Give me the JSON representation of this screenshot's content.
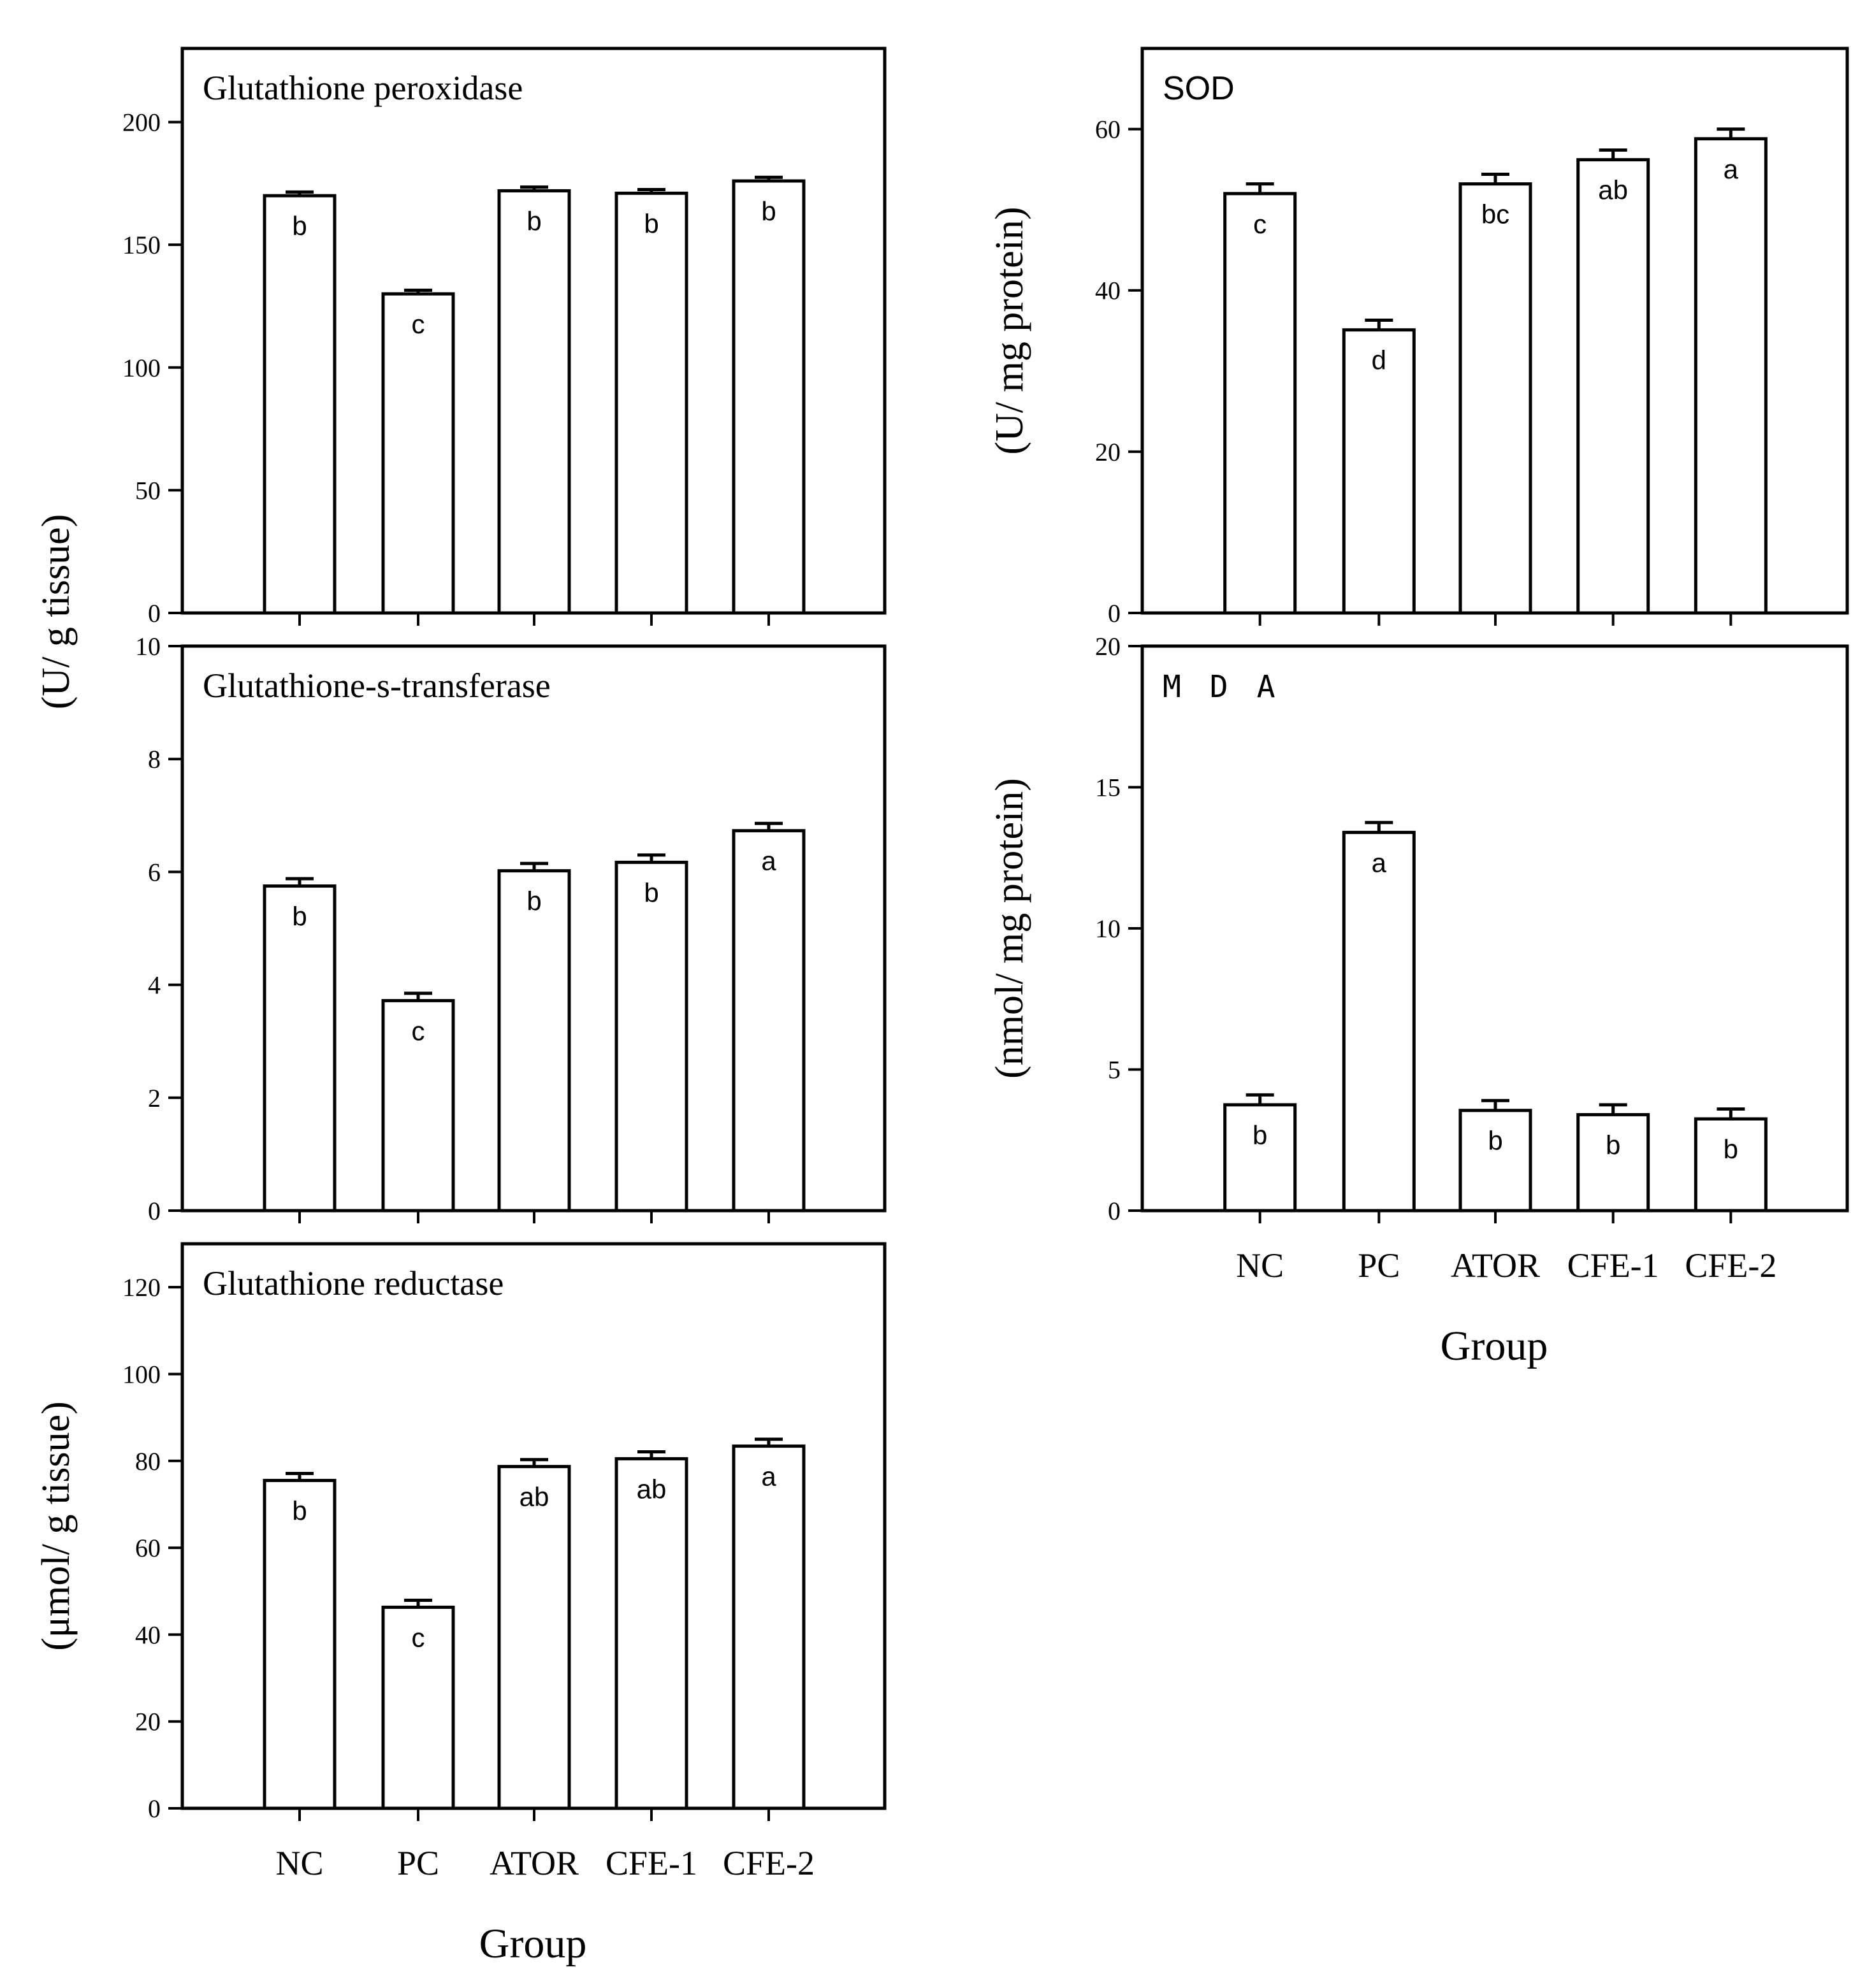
{
  "chart_data": [
    {
      "id": "gpx",
      "type": "bar",
      "title": "Glutathione peroxidase",
      "categories": [
        "NC",
        "PC",
        "ATOR",
        "CFE-1",
        "CFE-2"
      ],
      "values": [
        170,
        130,
        172,
        171,
        176
      ],
      "errors": [
        1.5,
        1.5,
        1.5,
        1.5,
        1.5
      ],
      "labels": [
        "b",
        "c",
        "b",
        "b",
        "b"
      ],
      "ylim": [
        0,
        230
      ],
      "yticks": [
        0,
        50,
        100,
        150,
        200
      ],
      "ylabel": ""
    },
    {
      "id": "gst",
      "type": "bar",
      "title": "Glutathione-s-transferase",
      "categories": [
        "NC",
        "PC",
        "ATOR",
        "CFE-1",
        "CFE-2"
      ],
      "values": [
        5.75,
        3.72,
        6.02,
        6.17,
        6.73
      ],
      "errors": [
        0.13,
        0.13,
        0.13,
        0.13,
        0.13
      ],
      "labels": [
        "b",
        "c",
        "b",
        "b",
        "a"
      ],
      "ylim": [
        0,
        10
      ],
      "yticks": [
        0,
        2,
        4,
        6,
        8,
        10
      ],
      "ylabel": ""
    },
    {
      "id": "gr",
      "type": "bar",
      "title": "Glutathione reductase",
      "categories": [
        "NC",
        "PC",
        "ATOR",
        "CFE-1",
        "CFE-2"
      ],
      "values": [
        75.5,
        46.3,
        78.7,
        80.5,
        83.4
      ],
      "errors": [
        1.6,
        1.6,
        1.6,
        1.6,
        1.6
      ],
      "labels": [
        "b",
        "c",
        "ab",
        "ab",
        "a"
      ],
      "ylim": [
        0,
        130
      ],
      "yticks": [
        0,
        20,
        40,
        60,
        80,
        100,
        120
      ],
      "ylabel": "(μmol/ g tissue)"
    },
    {
      "id": "sod",
      "type": "bar",
      "title": "SOD",
      "categories": [
        "NC",
        "PC",
        "ATOR",
        "CFE-1",
        "CFE-2"
      ],
      "values": [
        52,
        35.1,
        53.2,
        56.2,
        58.8
      ],
      "errors": [
        1.2,
        1.2,
        1.2,
        1.2,
        1.2
      ],
      "labels": [
        "c",
        "d",
        "bc",
        "ab",
        "a"
      ],
      "ylim": [
        0,
        70
      ],
      "yticks": [
        0,
        20,
        40,
        60
      ],
      "ylabel": "(U/ mg protein)"
    },
    {
      "id": "mda",
      "type": "bar",
      "title": "M D A",
      "categories": [
        "NC",
        "PC",
        "ATOR",
        "CFE-1",
        "CFE-2"
      ],
      "values": [
        3.75,
        13.4,
        3.55,
        3.4,
        3.25
      ],
      "errors": [
        0.35,
        0.35,
        0.35,
        0.35,
        0.35
      ],
      "labels": [
        "b",
        "a",
        "b",
        "b",
        "b"
      ],
      "ylim": [
        0,
        20
      ],
      "yticks": [
        0,
        5,
        10,
        15,
        20
      ],
      "ylabel": "(nmol/ mg protein)"
    }
  ],
  "shared_labels": {
    "left_top_ylabel": "(U/ g tissue)",
    "xlabel_left": "Group",
    "xlabel_right": "Group"
  }
}
